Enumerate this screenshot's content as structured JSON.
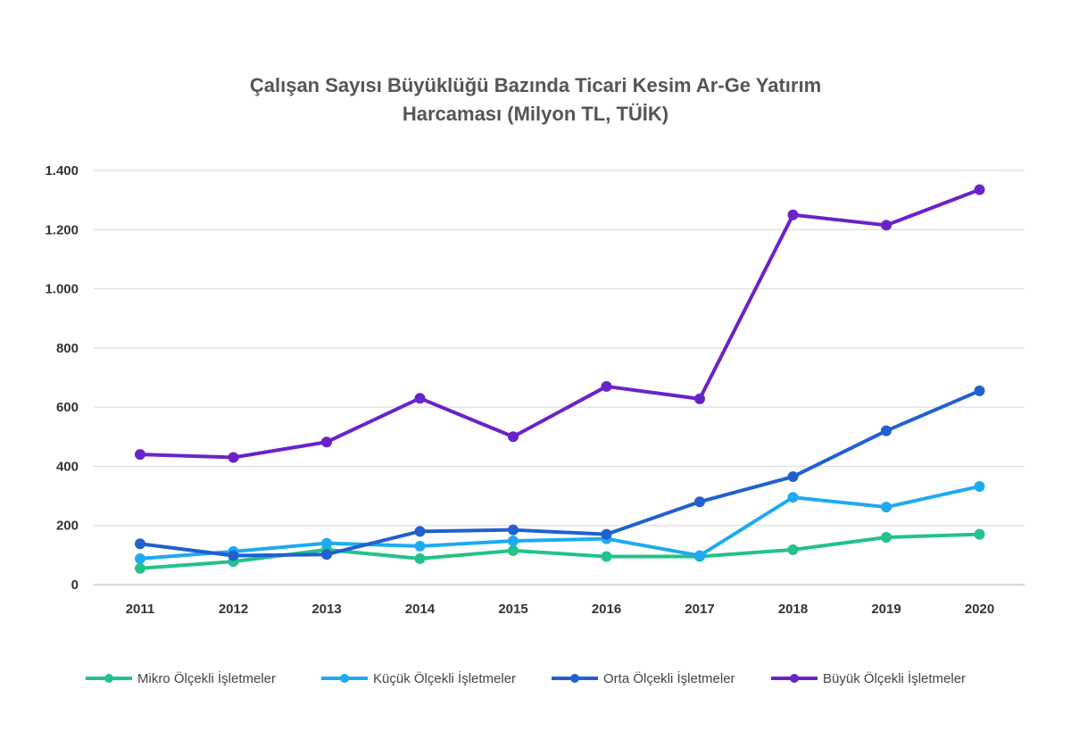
{
  "chart_data": {
    "type": "line",
    "title_lines": [
      "Çalışan Sayısı Büyüklüğü Bazında Ticari Kesim Ar-Ge Yatırım",
      "Harcaması (Milyon TL, TÜİK)"
    ],
    "x": [
      "2011",
      "2012",
      "2013",
      "2014",
      "2015",
      "2016",
      "2017",
      "2018",
      "2019",
      "2020"
    ],
    "ylim": [
      0,
      1400
    ],
    "yticks": [
      0,
      200,
      400,
      600,
      800,
      1000,
      1200,
      1400
    ],
    "ytick_labels": [
      "0",
      "200",
      "400",
      "600",
      "800",
      "1.000",
      "1.200",
      "1.400"
    ],
    "grid": true,
    "legend_position": "bottom",
    "series": [
      {
        "name": "Mikro Ölçekli İşletmeler",
        "color": "#22c28a",
        "values": [
          55,
          78,
          118,
          88,
          115,
          95,
          95,
          118,
          160,
          170
        ]
      },
      {
        "name": "Küçük Ölçekli İşletmeler",
        "color": "#1eaaf1",
        "values": [
          88,
          112,
          140,
          130,
          148,
          155,
          98,
          295,
          262,
          332
        ]
      },
      {
        "name": "Orta Ölçekli İşletmeler",
        "color": "#2160cf",
        "values": [
          138,
          98,
          102,
          180,
          185,
          170,
          280,
          365,
          520,
          655
        ]
      },
      {
        "name": "Büyük Ölçekli İşletmeler",
        "color": "#6a22c9",
        "values": [
          440,
          430,
          482,
          630,
          500,
          670,
          628,
          1250,
          1215,
          1335
        ]
      }
    ]
  }
}
